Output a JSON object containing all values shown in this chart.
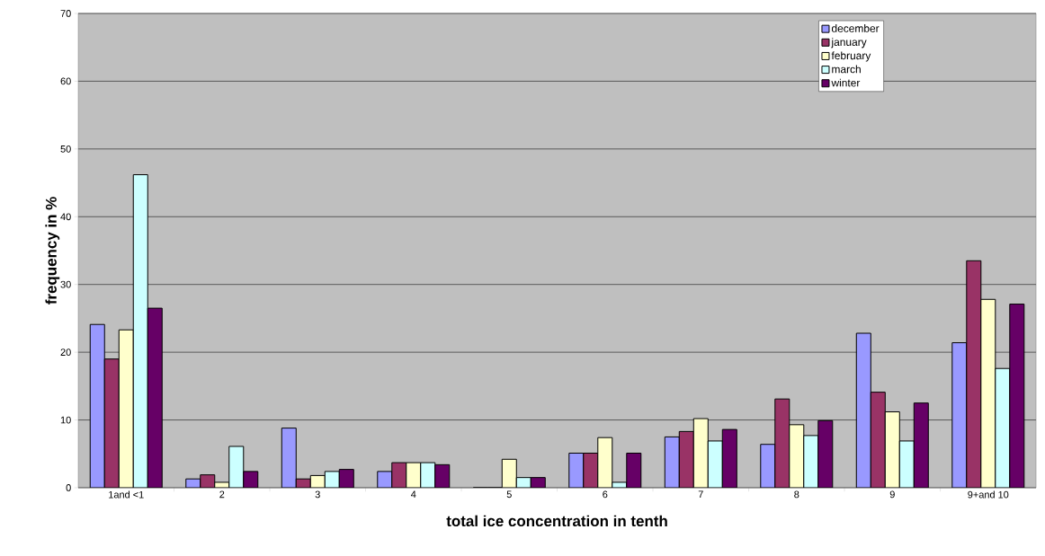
{
  "chart_data": {
    "type": "bar",
    "xlabel": "total ice concentration in tenth",
    "ylabel": "frequency in %",
    "categories": [
      "1and <1",
      "2",
      "3",
      "4",
      "5",
      "6",
      "7",
      "8",
      "9",
      "9+and 10"
    ],
    "series": [
      {
        "name": "december",
        "color": "#9999ff",
        "values": [
          24.1,
          1.3,
          8.8,
          2.4,
          0,
          5.1,
          7.5,
          6.4,
          22.8,
          21.4
        ]
      },
      {
        "name": "january",
        "color": "#993366",
        "values": [
          19,
          1.9,
          1.3,
          3.7,
          0,
          5.1,
          8.3,
          13.1,
          14.1,
          33.5
        ]
      },
      {
        "name": "february",
        "color": "#ffffcc",
        "values": [
          23.3,
          0.8,
          1.8,
          3.7,
          4.2,
          7.4,
          10.2,
          9.3,
          11.2,
          27.8
        ]
      },
      {
        "name": "march",
        "color": "#ccffff",
        "values": [
          46.2,
          6.1,
          2.4,
          3.7,
          1.5,
          0.8,
          6.9,
          7.7,
          6.9,
          17.6
        ]
      },
      {
        "name": "winter",
        "color": "#660066",
        "values": [
          26.5,
          2.4,
          2.7,
          3.4,
          1.5,
          5.1,
          8.6,
          9.9,
          12.5,
          27.1
        ]
      }
    ],
    "ylim": [
      0,
      70
    ],
    "yticks": [
      0,
      10,
      20,
      30,
      40,
      50,
      60,
      70
    ],
    "grid": "y",
    "legend": "top right"
  }
}
